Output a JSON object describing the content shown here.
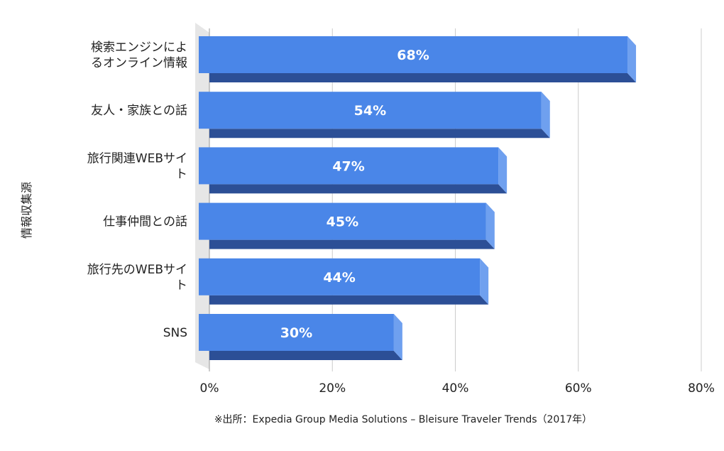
{
  "chart_data": {
    "type": "bar",
    "orientation": "horizontal",
    "style": "3d",
    "categories": [
      [
        "検索エンジンによ",
        "るオンライン情報"
      ],
      [
        "友人・家族との話"
      ],
      [
        "旅行関連WEBサイ",
        "ト"
      ],
      [
        "仕事仲間との話"
      ],
      [
        "旅行先のWEBサイ",
        "ト"
      ],
      [
        "SNS"
      ]
    ],
    "values": [
      68,
      54,
      47,
      45,
      44,
      30
    ],
    "data_labels": [
      "68%",
      "54%",
      "47%",
      "45%",
      "44%",
      "30%"
    ],
    "xlim": [
      0,
      80
    ],
    "xticks": [
      0,
      20,
      40,
      60,
      80
    ],
    "xtick_labels": [
      "0%",
      "20%",
      "40%",
      "60%",
      "80%"
    ],
    "ylabel": "情報収集源",
    "xlabel": "",
    "grid": "vertical",
    "source_note": "※出所：Expedia Group Media Solutions – Bleisure Traveler Trends（2017年）",
    "colors": {
      "bar_front": "#4a86e8",
      "bar_top": "#2c4f96",
      "bar_side": "#6fa0ef",
      "wall": "#e6e6e6",
      "grid": "#cccccc",
      "text": "#222222",
      "label": "#ffffff"
    }
  }
}
